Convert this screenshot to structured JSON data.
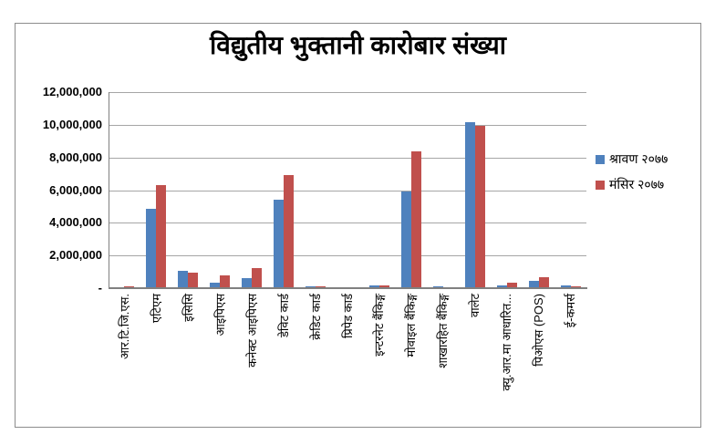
{
  "title": "विद्युतीय भुक्तानी कारोबार संख्या",
  "colors": {
    "series1": "#4f81bd",
    "series2": "#c0504d",
    "gridline": "#a6a6a6",
    "axis": "#808080",
    "border": "#8c8c8c"
  },
  "legend": {
    "position": "right",
    "items": [
      {
        "label": "श्रावण २०७७",
        "color": "#4f81bd"
      },
      {
        "label": "मंसिर २०७७",
        "color": "#c0504d"
      }
    ]
  },
  "chart_data": {
    "type": "bar",
    "title": "विद्युतीय भुक्तानी कारोबार संख्या",
    "xlabel": "",
    "ylabel": "",
    "ylim": [
      0,
      12000000
    ],
    "grid": true,
    "ytick_values": [
      12000000,
      10000000,
      8000000,
      6000000,
      4000000,
      2000000,
      0
    ],
    "ytick_labels": [
      "12,000,000",
      "10,000,000",
      "8,000,000",
      "6,000,000",
      "4,000,000",
      "2,000,000",
      "-"
    ],
    "categories": [
      "आर.टि.जि.एस.",
      "एटिएम",
      "इसिसि",
      "आइपिएस",
      "कनेक्ट आइपिएस",
      "डेविट कार्ड",
      "क्रेडिट कार्ड",
      "प्रिपेड कार्ड",
      "इन्टरनेट बैंकिङ्ग",
      "मोवाइल बैंकिङ्ग",
      "शाखारहित बैंकिङ्ग",
      "वालेट",
      "क्यु.आर.मा आधारित...",
      "पिओएस (POS)",
      "ई-कमर्स"
    ],
    "series": [
      {
        "name": "श्रावण २०७७",
        "color": "#4f81bd",
        "values": [
          30000,
          4850000,
          1050000,
          320000,
          600000,
          5430000,
          130000,
          20000,
          190000,
          5900000,
          100000,
          10150000,
          160000,
          420000,
          170000
        ]
      },
      {
        "name": "मंसिर २०७७",
        "color": "#c0504d",
        "values": [
          90000,
          6320000,
          930000,
          780000,
          1230000,
          6920000,
          110000,
          15000,
          170000,
          8380000,
          60000,
          9950000,
          320000,
          660000,
          90000
        ]
      }
    ]
  }
}
